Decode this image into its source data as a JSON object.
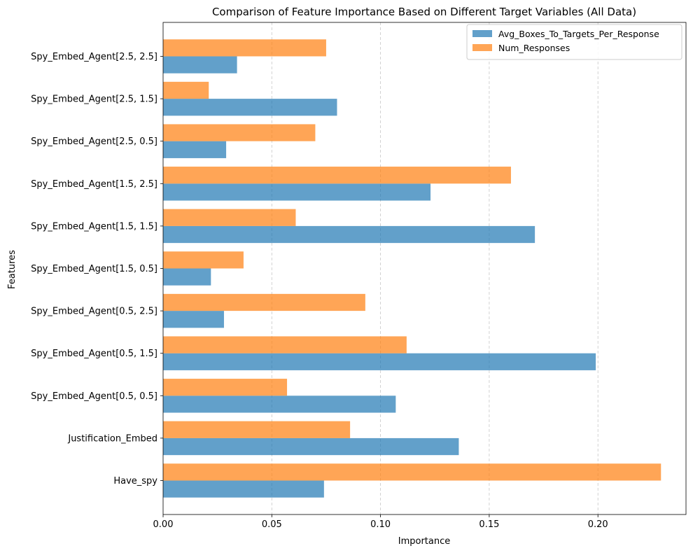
{
  "chart_data": {
    "type": "bar",
    "orientation": "horizontal",
    "title": "Comparison of Feature Importance Based on Different Target Variables (All Data)",
    "xlabel": "Importance",
    "ylabel": "Features",
    "xlim": [
      0,
      0.2405
    ],
    "xticks": [
      0.0,
      0.05,
      0.1,
      0.15,
      0.2
    ],
    "xtick_labels": [
      "0.00",
      "0.05",
      "0.10",
      "0.15",
      "0.20"
    ],
    "grid": "x-dashed",
    "legend_position": "top-right",
    "categories": [
      "Have_spy",
      "Justification_Embed",
      "Spy_Embed_Agent[0.5, 0.5]",
      "Spy_Embed_Agent[0.5, 1.5]",
      "Spy_Embed_Agent[0.5, 2.5]",
      "Spy_Embed_Agent[1.5, 0.5]",
      "Spy_Embed_Agent[1.5, 1.5]",
      "Spy_Embed_Agent[1.5, 2.5]",
      "Spy_Embed_Agent[2.5, 0.5]",
      "Spy_Embed_Agent[2.5, 1.5]",
      "Spy_Embed_Agent[2.5, 2.5]"
    ],
    "series": [
      {
        "name": "Avg_Boxes_To_Targets_Per_Response",
        "color": "#1f77b4",
        "values": [
          0.074,
          0.136,
          0.107,
          0.199,
          0.028,
          0.022,
          0.171,
          0.123,
          0.029,
          0.08,
          0.034
        ]
      },
      {
        "name": "Num_Responses",
        "color": "#ff7f0e",
        "values": [
          0.229,
          0.086,
          0.057,
          0.112,
          0.093,
          0.037,
          0.061,
          0.16,
          0.07,
          0.021,
          0.075
        ]
      }
    ]
  }
}
